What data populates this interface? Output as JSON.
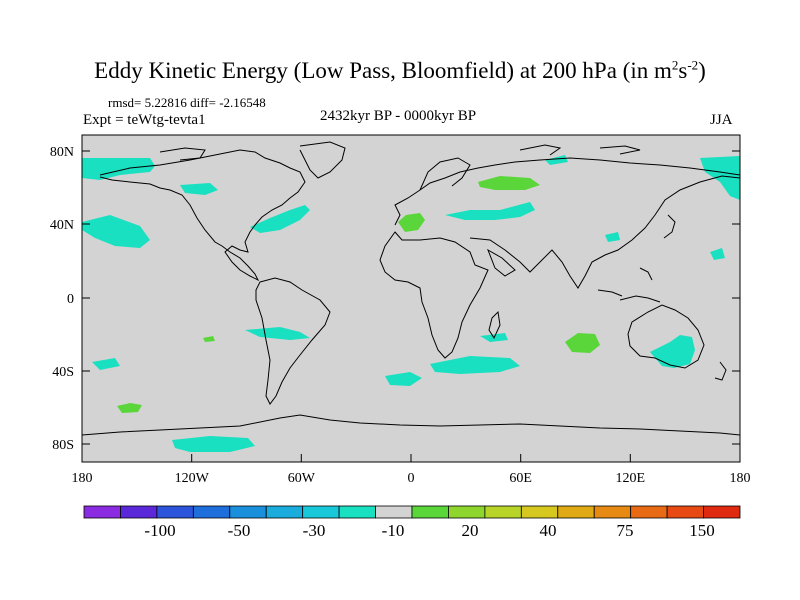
{
  "title_main": "Eddy Kinetic Energy (Low Pass, Bloomfield) at 200 hPa (in m",
  "title_sup1": "2",
  "title_mid": "s",
  "title_sup2": "-2",
  "title_end": ")",
  "stats": "rmsd= 5.22816 diff= -2.16548",
  "experiment": "Expt = teWtg-tevta1",
  "period": "2432kyr BP - 0000kyr BP",
  "season": "JJA",
  "colors": {
    "land_bg": "#d3d3d3",
    "cyan": "#19e0c0",
    "green": "#5ad63a"
  },
  "map": {
    "lat_ticks": [
      "80N",
      "40N",
      "0",
      "40S",
      "80S"
    ],
    "lon_ticks": [
      "180",
      "120W",
      "60W",
      "0",
      "60E",
      "120E",
      "180"
    ]
  },
  "colorbar": {
    "colors": [
      "#8a2be2",
      "#5a28d8",
      "#2d55dc",
      "#1e6fdc",
      "#1a8fdc",
      "#19acdc",
      "#19c8d8",
      "#19e0c0",
      "#d3d3d3",
      "#5ad63a",
      "#8ed62e",
      "#b8d428",
      "#d6c81e",
      "#e0aa14",
      "#e68a14",
      "#e86a14",
      "#e84a14",
      "#e02a10"
    ],
    "labels": [
      "-100",
      "-50",
      "-30",
      "-10",
      "20",
      "40",
      "75",
      "150"
    ]
  }
}
